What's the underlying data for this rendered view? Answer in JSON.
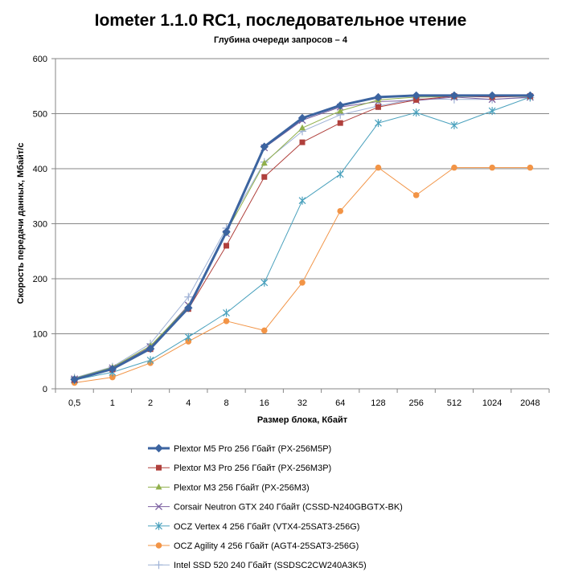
{
  "chart_data": {
    "type": "line",
    "title": "Iometer 1.1.0 RC1, последовательное чтение",
    "subtitle": "Глубина очереди запросов – 4",
    "xlabel": "Размер блока, Кбайт",
    "ylabel": "Скорость передачи данных, Мбайт/с",
    "ylim": [
      0,
      600
    ],
    "yticks": [
      "0",
      "100",
      "200",
      "300",
      "400",
      "500",
      "600"
    ],
    "categories": [
      "0,5",
      "1",
      "2",
      "4",
      "8",
      "16",
      "32",
      "64",
      "128",
      "256",
      "512",
      "1024",
      "2048"
    ],
    "grid": true,
    "legend_position": "bottom",
    "series": [
      {
        "name": "Plextor M5 Pro 256 Гбайт (PX-256M5P)",
        "color": "#3c64a0",
        "marker": "diamond",
        "width": 3,
        "values": [
          17,
          36,
          73,
          147,
          285,
          440,
          492,
          515,
          530,
          533,
          533,
          533,
          533
        ]
      },
      {
        "name": "Plextor M3 Pro 256 Гбайт (PX-256M3P)",
        "color": "#b0403c",
        "marker": "square",
        "width": 1,
        "values": [
          16,
          35,
          72,
          145,
          260,
          385,
          448,
          483,
          512,
          525,
          532,
          530,
          532
        ]
      },
      {
        "name": "Plextor M3 256 Гбайт (PX-256M3)",
        "color": "#91b04c",
        "marker": "triangle",
        "width": 1,
        "values": [
          19,
          39,
          78,
          150,
          285,
          410,
          474,
          505,
          525,
          530,
          531,
          531,
          531
        ]
      },
      {
        "name": "Corsair Neutron GTX 240 Гбайт (CSSD-N240GBGTX-BK)",
        "color": "#7b5fa0",
        "marker": "x",
        "width": 1,
        "values": [
          18,
          38,
          76,
          152,
          282,
          438,
          488,
          512,
          522,
          524,
          530,
          526,
          530
        ]
      },
      {
        "name": "OCZ Vertex  4 256 Гбайт (VTX4-25SAT3-256G)",
        "color": "#4aa1bd",
        "marker": "star",
        "width": 1,
        "values": [
          16,
          30,
          52,
          94,
          138,
          193,
          342,
          390,
          483,
          502,
          479,
          505,
          530
        ]
      },
      {
        "name": "OCZ Agility 4 256 Гбайт (AGT4-25SAT3-256G)",
        "color": "#f29446",
        "marker": "circle",
        "width": 1,
        "values": [
          11,
          21,
          47,
          86,
          123,
          106,
          193,
          323,
          402,
          352,
          402,
          402,
          402
        ]
      },
      {
        "name": "Intel SSD 520 240 Гбайт (SSDSC2CW240A3K5)",
        "color": "#9fb2d6",
        "marker": "plus",
        "width": 1,
        "values": [
          20,
          40,
          82,
          167,
          292,
          412,
          468,
          498,
          514,
          527,
          526,
          526,
          529
        ]
      }
    ]
  }
}
